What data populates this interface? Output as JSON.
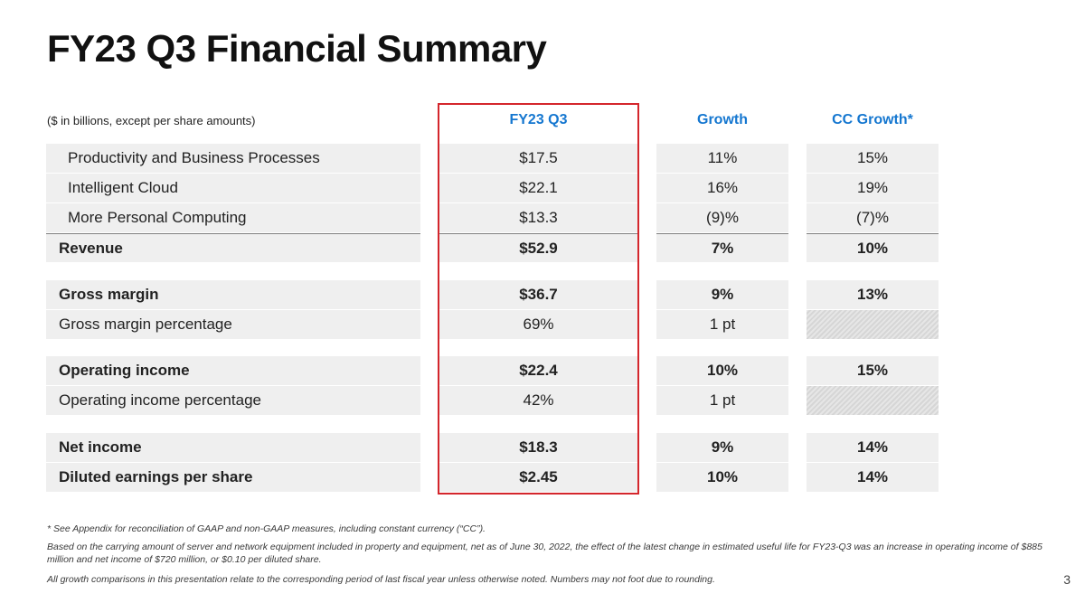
{
  "title": "FY23 Q3 Financial Summary",
  "units_note": "($ in billions, except per share amounts)",
  "columns": [
    "FY23 Q3",
    "Growth",
    "CC Growth*"
  ],
  "accent_color": "#1577d0",
  "highlight_color": "#d4262c",
  "rows": [
    {
      "label": "Productivity and Business Processes",
      "q3": "$17.5",
      "growth": "11%",
      "cc": "15%"
    },
    {
      "label": "Intelligent Cloud",
      "q3": "$22.1",
      "growth": "16%",
      "cc": "19%"
    },
    {
      "label": "More Personal Computing",
      "q3": "$13.3",
      "growth": "(9)%",
      "cc": "(7)%"
    },
    {
      "label": "Revenue",
      "q3": "$52.9",
      "growth": "7%",
      "cc": "10%"
    },
    {
      "label": "Gross margin",
      "q3": "$36.7",
      "growth": "9%",
      "cc": "13%"
    },
    {
      "label": "Gross margin percentage",
      "q3": "69%",
      "growth": "1 pt",
      "cc": ""
    },
    {
      "label": "Operating income",
      "q3": "$22.4",
      "growth": "10%",
      "cc": "15%"
    },
    {
      "label": "Operating income percentage",
      "q3": "42%",
      "growth": "1 pt",
      "cc": ""
    },
    {
      "label": "Net income",
      "q3": "$18.3",
      "growth": "9%",
      "cc": "14%"
    },
    {
      "label": "Diluted earnings per share",
      "q3": "$2.45",
      "growth": "10%",
      "cc": "14%"
    }
  ],
  "footnotes": [
    "* See Appendix for reconciliation of GAAP and non-GAAP measures, including constant currency (“CC”).",
    "Based on the carrying amount of server and network equipment included in property and equipment, net as of June 30, 2022, the effect of the latest change in estimated useful life for FY23-Q3 was an increase in operating income of $885 million and net income of $720 million, or $0.10 per diluted share.",
    "All growth comparisons in this presentation relate to the corresponding period of last fiscal year unless otherwise noted. Numbers may not foot due to rounding."
  ],
  "page_number": "3"
}
